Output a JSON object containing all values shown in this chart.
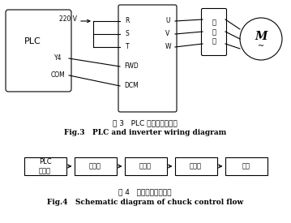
{
  "bg_color": "#ffffff",
  "title1_zh": "图 3   PLC 与变频器接线图",
  "title1_en": "Fig.3   PLC and inverter wiring diagram",
  "title2_zh": "图 4   卡盘控制流程示意",
  "title2_en": "Fig.4   Schematic diagram of chuck control flow",
  "flow_boxes": [
    "PLC\n控制器",
    "变频器",
    "继电器",
    "电动机",
    "卡盘"
  ],
  "fig3_plc_label": "PLC",
  "fig3_plc_y4": "Y4",
  "fig3_plc_com": "COM",
  "fig3_220v": "220 V",
  "fig3_fwd": "FWD",
  "fig3_dcm": "DCM",
  "fig3_jdq": "继\n电\n器",
  "fig3_M": "M",
  "lw": 0.8,
  "fs_zh": 6.0,
  "fs_en_cap": 6.5,
  "fs_label": 5.5,
  "fs_motor_M": 10
}
